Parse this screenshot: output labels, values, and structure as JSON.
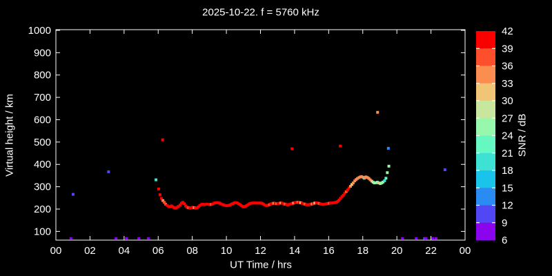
{
  "chart_data": {
    "type": "scatter",
    "title": "2025-10-22. f = 5760 kHz",
    "xlabel": "UT Time / hrs",
    "ylabel": "Virtual height / km",
    "xlim": [
      0,
      24
    ],
    "ylim": [
      61,
      1003
    ],
    "grid": false,
    "x_ticks": {
      "values": [
        0,
        2,
        4,
        6,
        8,
        10,
        12,
        14,
        16,
        18,
        20,
        22,
        24
      ],
      "labels": [
        "00",
        "02",
        "04",
        "06",
        "08",
        "10",
        "12",
        "14",
        "16",
        "18",
        "20",
        "22",
        "00"
      ]
    },
    "y_ticks": {
      "values": [
        100,
        200,
        300,
        400,
        500,
        600,
        700,
        800,
        900,
        1000
      ],
      "labels": [
        "100",
        "200",
        "300",
        "400",
        "500",
        "600",
        "700",
        "800",
        "900",
        "1000"
      ]
    },
    "colorbar": {
      "label": "SNR / dB",
      "min": 6,
      "max": 42,
      "step": 3,
      "tick_labels": [
        "42",
        "39",
        "36",
        "33",
        "30",
        "27",
        "24",
        "21",
        "18",
        "15",
        "12",
        "9",
        "6"
      ],
      "colors_low_to_high": [
        "#8A05EE",
        "#5247F5",
        "#2A8CF2",
        "#19C3EA",
        "#3EE2D4",
        "#66F8C3",
        "#97F7AB",
        "#C8E69E",
        "#F0C575",
        "#FB8D51",
        "#FD4F2C",
        "#FC0000"
      ]
    },
    "points_format": [
      "ut_hr",
      "virtual_height_km",
      "snr_db"
    ],
    "points": [
      [
        0.88,
        68,
        7
      ],
      [
        1.01,
        266,
        10
      ],
      [
        3.09,
        367,
        10
      ],
      [
        3.53,
        68,
        7
      ],
      [
        4.14,
        68,
        7
      ],
      [
        4.86,
        68,
        7
      ],
      [
        5.42,
        68,
        7
      ],
      [
        5.87,
        331,
        19
      ],
      [
        6.26,
        510,
        40
      ],
      [
        6.03,
        290,
        40
      ],
      [
        6.11,
        264,
        40
      ],
      [
        6.19,
        248,
        40
      ],
      [
        6.28,
        238,
        34
      ],
      [
        6.36,
        230,
        37
      ],
      [
        6.44,
        222,
        37
      ],
      [
        6.53,
        216,
        40
      ],
      [
        6.61,
        212,
        40
      ],
      [
        6.69,
        210,
        40
      ],
      [
        6.78,
        214,
        40
      ],
      [
        6.86,
        210,
        40
      ],
      [
        6.94,
        206,
        40
      ],
      [
        7.03,
        204,
        40
      ],
      [
        7.11,
        208,
        40
      ],
      [
        7.19,
        212,
        40
      ],
      [
        7.28,
        218,
        40
      ],
      [
        7.36,
        226,
        40
      ],
      [
        7.44,
        230,
        40
      ],
      [
        7.53,
        224,
        40
      ],
      [
        7.61,
        214,
        40
      ],
      [
        7.69,
        208,
        40
      ],
      [
        7.78,
        206,
        37
      ],
      [
        7.86,
        204,
        40
      ],
      [
        7.94,
        206,
        40
      ],
      [
        8.03,
        208,
        40
      ],
      [
        8.11,
        206,
        34
      ],
      [
        8.19,
        204,
        40
      ],
      [
        8.28,
        206,
        40
      ],
      [
        8.36,
        210,
        40
      ],
      [
        8.44,
        216,
        40
      ],
      [
        8.53,
        220,
        40
      ],
      [
        8.61,
        222,
        40
      ],
      [
        8.69,
        220,
        40
      ],
      [
        8.78,
        221,
        40
      ],
      [
        8.86,
        222,
        40
      ],
      [
        8.94,
        221,
        40
      ],
      [
        9.03,
        220,
        40
      ],
      [
        9.11,
        221,
        37
      ],
      [
        9.19,
        223,
        40
      ],
      [
        9.28,
        226,
        40
      ],
      [
        9.36,
        228,
        40
      ],
      [
        9.44,
        229,
        40
      ],
      [
        9.53,
        228,
        40
      ],
      [
        9.61,
        226,
        40
      ],
      [
        9.69,
        223,
        40
      ],
      [
        9.78,
        220,
        40
      ],
      [
        9.86,
        218,
        40
      ],
      [
        9.94,
        216,
        40
      ],
      [
        10.03,
        215,
        40
      ],
      [
        10.11,
        216,
        40
      ],
      [
        10.19,
        218,
        40
      ],
      [
        10.28,
        221,
        40
      ],
      [
        10.36,
        224,
        40
      ],
      [
        10.44,
        227,
        40
      ],
      [
        10.53,
        229,
        40
      ],
      [
        10.61,
        228,
        40
      ],
      [
        10.69,
        225,
        40
      ],
      [
        10.78,
        221,
        40
      ],
      [
        10.86,
        216,
        40
      ],
      [
        10.94,
        212,
        40
      ],
      [
        11.03,
        210,
        40
      ],
      [
        11.11,
        212,
        40
      ],
      [
        11.19,
        216,
        40
      ],
      [
        11.28,
        220,
        40
      ],
      [
        11.36,
        224,
        40
      ],
      [
        11.44,
        226,
        40
      ],
      [
        11.53,
        227,
        40
      ],
      [
        11.61,
        227,
        40
      ],
      [
        11.69,
        227,
        40
      ],
      [
        11.78,
        227,
        40
      ],
      [
        11.86,
        227,
        40
      ],
      [
        11.94,
        227,
        40
      ],
      [
        12.03,
        227,
        40
      ],
      [
        12.11,
        225,
        40
      ],
      [
        12.19,
        221,
        40
      ],
      [
        12.28,
        217,
        40
      ],
      [
        12.36,
        215,
        40
      ],
      [
        12.44,
        217,
        40
      ],
      [
        12.53,
        220,
        37
      ],
      [
        12.61,
        223,
        40
      ],
      [
        12.69,
        225,
        40
      ],
      [
        12.78,
        226,
        34
      ],
      [
        12.86,
        225,
        40
      ],
      [
        12.94,
        224,
        37
      ],
      [
        13.03,
        225,
        40
      ],
      [
        13.11,
        226,
        40
      ],
      [
        13.19,
        227,
        34
      ],
      [
        13.28,
        226,
        40
      ],
      [
        13.36,
        224,
        40
      ],
      [
        13.44,
        222,
        37
      ],
      [
        13.53,
        220,
        40
      ],
      [
        13.61,
        219,
        40
      ],
      [
        13.69,
        221,
        40
      ],
      [
        13.78,
        223,
        40
      ],
      [
        13.86,
        225,
        40
      ],
      [
        13.94,
        227,
        34
      ],
      [
        13.85,
        470,
        40
      ],
      [
        14.03,
        229,
        40
      ],
      [
        14.11,
        230,
        40
      ],
      [
        14.19,
        231,
        37
      ],
      [
        14.28,
        230,
        40
      ],
      [
        14.36,
        228,
        31
      ],
      [
        14.44,
        226,
        40
      ],
      [
        14.53,
        224,
        40
      ],
      [
        14.61,
        222,
        37
      ],
      [
        14.69,
        220,
        40
      ],
      [
        14.78,
        219,
        40
      ],
      [
        14.86,
        220,
        40
      ],
      [
        14.94,
        221,
        40
      ],
      [
        15.03,
        223,
        34
      ],
      [
        15.11,
        225,
        40
      ],
      [
        15.19,
        227,
        31
      ],
      [
        15.28,
        228,
        40
      ],
      [
        15.36,
        227,
        40
      ],
      [
        15.44,
        225,
        37
      ],
      [
        15.53,
        223,
        40
      ],
      [
        15.61,
        221,
        40
      ],
      [
        15.69,
        221,
        40
      ],
      [
        15.78,
        222,
        40
      ],
      [
        15.86,
        223,
        40
      ],
      [
        15.94,
        225,
        40
      ],
      [
        16.03,
        226,
        37
      ],
      [
        16.11,
        227,
        40
      ],
      [
        16.19,
        227,
        40
      ],
      [
        16.28,
        228,
        40
      ],
      [
        16.36,
        229,
        40
      ],
      [
        16.44,
        231,
        40
      ],
      [
        16.53,
        234,
        40
      ],
      [
        16.61,
        240,
        40
      ],
      [
        16.68,
        482,
        40
      ],
      [
        16.69,
        248,
        40
      ],
      [
        16.78,
        256,
        40
      ],
      [
        16.86,
        262,
        40
      ],
      [
        16.94,
        270,
        40
      ],
      [
        17.03,
        278,
        37
      ],
      [
        17.11,
        286,
        40
      ],
      [
        17.19,
        294,
        40
      ],
      [
        17.28,
        302,
        34
      ],
      [
        17.36,
        310,
        31
      ],
      [
        17.44,
        317,
        34
      ],
      [
        17.53,
        326,
        34
      ],
      [
        17.61,
        332,
        34
      ],
      [
        17.69,
        337,
        34
      ],
      [
        17.78,
        341,
        34
      ],
      [
        17.86,
        344,
        34
      ],
      [
        17.94,
        345,
        34
      ],
      [
        18.03,
        342,
        34
      ],
      [
        18.08,
        338,
        19
      ],
      [
        18.11,
        340,
        34
      ],
      [
        18.19,
        344,
        34
      ],
      [
        18.28,
        341,
        34
      ],
      [
        18.36,
        337,
        34
      ],
      [
        18.44,
        331,
        34
      ],
      [
        18.53,
        325,
        31
      ],
      [
        18.61,
        320,
        25
      ],
      [
        18.69,
        317,
        25
      ],
      [
        18.78,
        318,
        25
      ],
      [
        18.86,
        320,
        25
      ],
      [
        18.87,
        633,
        34
      ],
      [
        18.94,
        317,
        31
      ],
      [
        19.03,
        314,
        25
      ],
      [
        19.11,
        317,
        25
      ],
      [
        19.19,
        321,
        25
      ],
      [
        19.28,
        327,
        20
      ],
      [
        19.36,
        338,
        22
      ],
      [
        19.44,
        363,
        25
      ],
      [
        19.53,
        392,
        25
      ],
      [
        19.5,
        472,
        13
      ],
      [
        20.32,
        68,
        7
      ],
      [
        21.13,
        68,
        7
      ],
      [
        21.62,
        68,
        10
      ],
      [
        21.7,
        68,
        7
      ],
      [
        22.1,
        68,
        7
      ],
      [
        22.3,
        68,
        7
      ],
      [
        22.82,
        376,
        10
      ]
    ]
  }
}
